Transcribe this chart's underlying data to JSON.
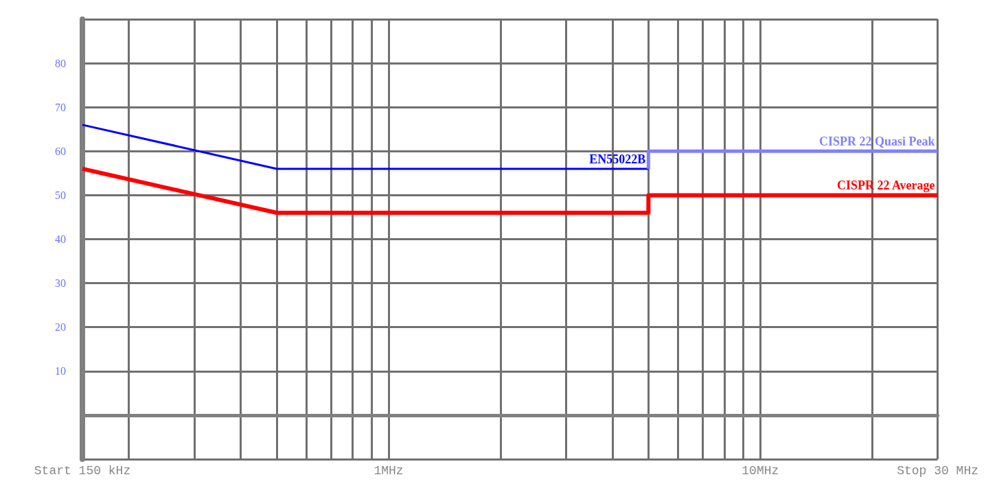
{
  "chart_data": {
    "type": "line",
    "log": "x",
    "series": [
      {
        "name": "EN55022B",
        "color": "#0000ff",
        "x": [
          0.15,
          0.5,
          5
        ],
        "values": [
          66,
          56,
          56
        ]
      },
      {
        "name": "CISPR 22 Quasi Peak",
        "color": "#8080ff",
        "x": [
          5,
          5,
          30
        ],
        "values": [
          56,
          60,
          60
        ]
      },
      {
        "name": "CISPR 22 Average",
        "color": "#ff0000",
        "x": [
          0.15,
          0.5,
          5,
          5,
          30
        ],
        "values": [
          56,
          46,
          46,
          50,
          50
        ]
      }
    ],
    "xlim": [
      0.15,
      30
    ],
    "xticks": [
      {
        "value": 0.15,
        "label": "Start 150 kHz"
      },
      {
        "value": 0.2,
        "label": null
      },
      {
        "value": 0.3,
        "label": null
      },
      {
        "value": 0.4,
        "label": null
      },
      {
        "value": 0.5,
        "label": null
      },
      {
        "value": 0.6,
        "label": null
      },
      {
        "value": 0.7,
        "label": null
      },
      {
        "value": 0.8,
        "label": null
      },
      {
        "value": 0.9,
        "label": null
      },
      {
        "value": 1,
        "label": "1MHz"
      },
      {
        "value": 2,
        "label": null
      },
      {
        "value": 3,
        "label": null
      },
      {
        "value": 4,
        "label": null
      },
      {
        "value": 5,
        "label": null
      },
      {
        "value": 6,
        "label": null
      },
      {
        "value": 7,
        "label": null
      },
      {
        "value": 8,
        "label": null
      },
      {
        "value": 9,
        "label": null
      },
      {
        "value": 10,
        "label": "10MHz"
      },
      {
        "value": 20,
        "label": null
      },
      {
        "value": 30,
        "label": "Stop 30 MHz"
      }
    ],
    "ylim": [
      -10,
      90
    ],
    "yticks": [
      {
        "value": -10,
        "label": null
      },
      {
        "value": 0,
        "label": null
      },
      10,
      20,
      30,
      40,
      50,
      60,
      70,
      80,
      {
        "value": 90,
        "label": null
      }
    ],
    "grid": true,
    "legend": false,
    "marker": "none",
    "line_style": "solid"
  }
}
